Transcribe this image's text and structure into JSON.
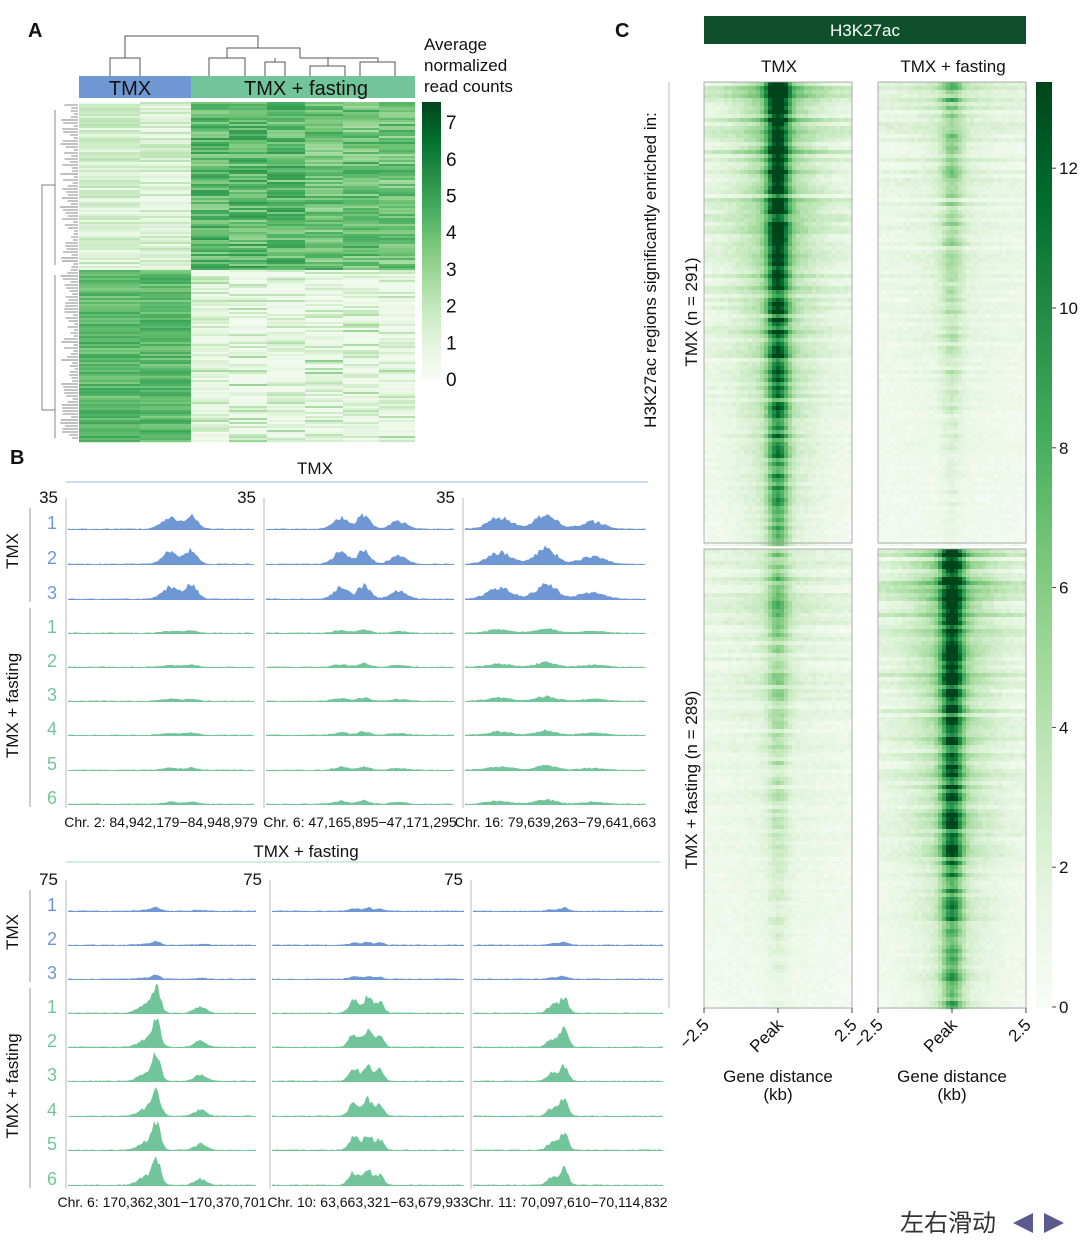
{
  "panel_labels": {
    "a": "A",
    "b": "B",
    "c": "C"
  },
  "colors": {
    "tmx": "#6e97d4",
    "fasting": "#72c59a",
    "heat_low": "#f7fcf5",
    "heat_high": "#00441b",
    "title_bar": "#0f4f2c",
    "nav": "#5b5a8e"
  },
  "chart_data": [
    {
      "type": "heatmap",
      "panel": "A",
      "group_labels": [
        "TMX",
        "TMX + fasting"
      ],
      "colorbar_title": [
        "Average",
        "normalized",
        "read counts"
      ],
      "colorbar_ticks": [
        "0",
        "1",
        "2",
        "3",
        "4",
        "5",
        "6",
        "7"
      ],
      "colorbar_range": [
        0,
        7.5
      ],
      "dendrogram": "rows and columns clustered"
    },
    {
      "type": "area",
      "panel": "B-top",
      "title": "TMX",
      "scale_labels": [
        "35",
        "35",
        "35"
      ],
      "group_labels": [
        "TMX",
        "TMX + fasting"
      ],
      "tmx_replicates": [
        "1",
        "2",
        "3"
      ],
      "fasting_replicates": [
        "1",
        "2",
        "3",
        "4",
        "5",
        "6"
      ],
      "loci": [
        "Chr. 2: 84,942,179−84,948,979",
        "Chr. 6: 47,165,895−47,171,295",
        "Chr. 16: 79,639,263−79,641,663"
      ]
    },
    {
      "type": "area",
      "panel": "B-bottom",
      "title": "TMX + fasting",
      "scale_labels": [
        "75",
        "75",
        "75"
      ],
      "group_labels": [
        "TMX",
        "TMX + fasting"
      ],
      "tmx_replicates": [
        "1",
        "2",
        "3"
      ],
      "fasting_replicates": [
        "1",
        "2",
        "3",
        "4",
        "5",
        "6"
      ],
      "loci": [
        "Chr. 6: 170,362,301−170,370,701",
        "Chr. 10: 63,663,321−63,679,933",
        "Chr. 11: 70,097,610−70,114,832"
      ]
    },
    {
      "type": "heatmap",
      "panel": "C",
      "title": "H3K27ac",
      "columns": [
        "TMX",
        "TMX + fasting"
      ],
      "ylabel": "H3K27ac regions significantly enriched in:",
      "row_groups": [
        "TMX (n = 291)",
        "TMX + fasting (n = 289)"
      ],
      "xticks": [
        "−2.5",
        "Peak",
        "2.5"
      ],
      "xlabel": [
        "Gene distance",
        "(kb)"
      ],
      "colorbar_ticks": [
        "0",
        "2",
        "4",
        "6",
        "8",
        "10",
        "12"
      ],
      "colorbar_range": [
        0,
        13.2
      ]
    }
  ],
  "nav": {
    "label": "左右滑动"
  }
}
